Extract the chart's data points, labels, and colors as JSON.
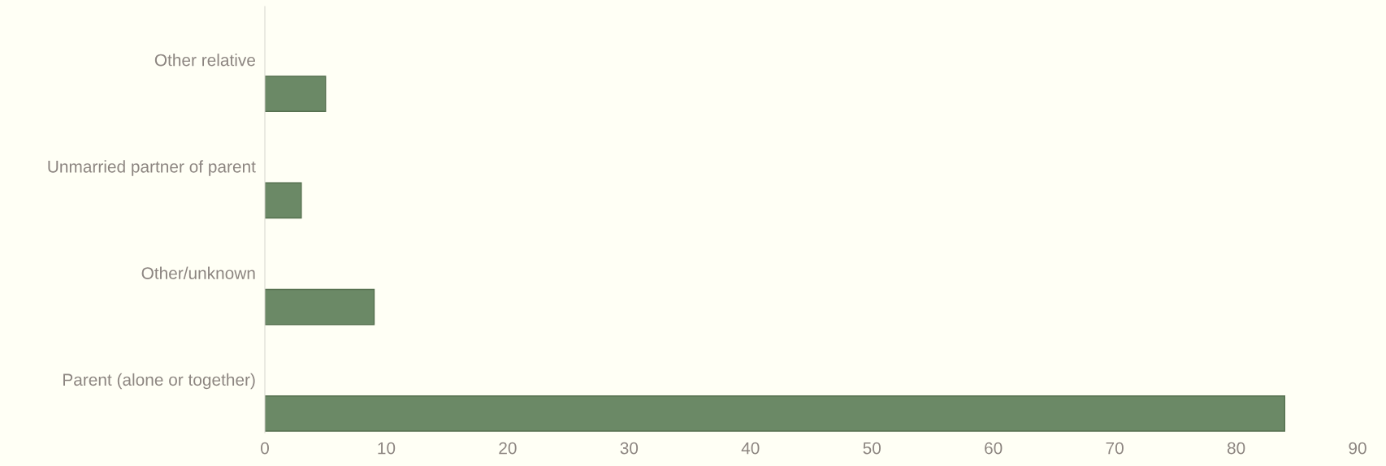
{
  "chart_data": {
    "type": "bar",
    "orientation": "horizontal",
    "categories": [
      "Other relative",
      "Unmarried partner of parent",
      "Other/unknown",
      "Parent (alone or together)"
    ],
    "values": [
      5,
      3,
      9,
      84
    ],
    "color": "#6b8966",
    "xlim": [
      0,
      90
    ],
    "xticks": [
      0,
      10,
      20,
      30,
      40,
      50,
      60,
      70,
      80,
      90
    ],
    "grid": false,
    "legend": false
  }
}
